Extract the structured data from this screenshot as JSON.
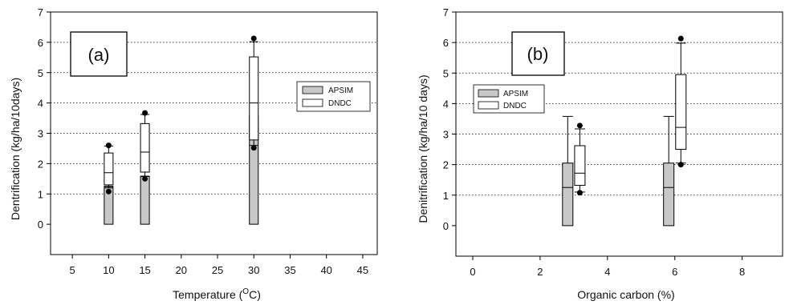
{
  "chart_data": [
    {
      "type": "box",
      "panel_label": "(a)",
      "xlabel": "Temperature (",
      "xlabel_sup": "O",
      "xlabel_suffix": "C)",
      "ylabel": "Dentrification (kg/ha/10days)",
      "xlim": [
        2,
        47
      ],
      "ylim": [
        -1,
        7
      ],
      "x_ticks": [
        5,
        10,
        15,
        20,
        25,
        30,
        35,
        40,
        45
      ],
      "y_ticks": [
        0,
        1,
        2,
        3,
        4,
        5,
        6,
        7
      ],
      "grid": "horizontal dotted",
      "legend_position": "right",
      "series": [
        {
          "name": "APSIM",
          "color": "#c8c8c8",
          "boxes": [
            {
              "x": 10,
              "whisker_low": 0,
              "q1": 0,
              "median": 1.25,
              "q3": 1.25,
              "whisker_high": 1.25,
              "outliers": []
            },
            {
              "x": 15,
              "whisker_low": 0,
              "q1": 0,
              "median": 1.58,
              "q3": 1.58,
              "whisker_high": 1.58,
              "outliers": []
            },
            {
              "x": 30,
              "whisker_low": 0,
              "q1": 0,
              "median": 3.58,
              "q3": 3.58,
              "whisker_high": 3.58,
              "outliers": []
            }
          ]
        },
        {
          "name": "DNDC",
          "color": "#ffffff",
          "boxes": [
            {
              "x": 10,
              "whisker_low": 1.2,
              "q1": 1.3,
              "median": 1.7,
              "q3": 2.35,
              "whisker_high": 2.58,
              "outliers": [
                1.08,
                2.6
              ]
            },
            {
              "x": 15,
              "whisker_low": 1.58,
              "q1": 1.72,
              "median": 2.38,
              "q3": 3.32,
              "whisker_high": 3.62,
              "outliers": [
                1.5,
                3.67
              ]
            },
            {
              "x": 30,
              "whisker_low": 2.6,
              "q1": 2.78,
              "median": 4.0,
              "q3": 5.52,
              "whisker_high": 6.02,
              "outliers": [
                2.52,
                6.13
              ]
            }
          ]
        }
      ]
    },
    {
      "type": "box",
      "panel_label": "(b)",
      "xlabel": "Organic carbon (%)",
      "ylabel": "Denitrification (kg/ha/10 days)",
      "xlim": [
        -0.5,
        9.2
      ],
      "ylim": [
        -1,
        7
      ],
      "x_ticks": [
        0,
        2,
        4,
        6,
        8
      ],
      "y_ticks": [
        0,
        1,
        2,
        3,
        4,
        5,
        6,
        7
      ],
      "grid": "horizontal dotted",
      "legend_position": "left",
      "series": [
        {
          "name": "APSIM",
          "color": "#c8c8c8",
          "boxes": [
            {
              "x": 2.82,
              "whisker_low": 0,
              "q1": 0,
              "median": 1.25,
              "q3": 2.05,
              "whisker_high": 3.58,
              "outliers": []
            },
            {
              "x": 5.82,
              "whisker_low": 0,
              "q1": 0,
              "median": 1.25,
              "q3": 2.05,
              "whisker_high": 3.58,
              "outliers": []
            }
          ]
        },
        {
          "name": "DNDC",
          "color": "#ffffff",
          "boxes": [
            {
              "x": 3.18,
              "whisker_low": 1.1,
              "q1": 1.32,
              "median": 1.72,
              "q3": 2.62,
              "whisker_high": 3.17,
              "outliers": [
                1.08,
                3.28
              ]
            },
            {
              "x": 6.18,
              "whisker_low": 2.05,
              "q1": 2.5,
              "median": 3.22,
              "q3": 4.95,
              "whisker_high": 5.98,
              "outliers": [
                2.0,
                6.13
              ]
            }
          ]
        }
      ]
    }
  ]
}
